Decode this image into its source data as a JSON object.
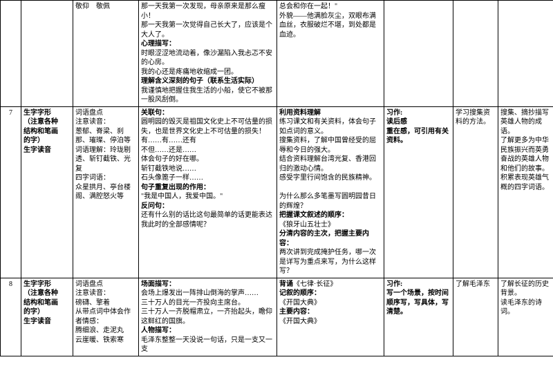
{
  "rows": [
    {
      "num": "",
      "a": "",
      "b": "敬仰　敬佩",
      "c": "那一天我第一次发现，母亲原来是那么瘦小！\n那一天我第一次觉得自己长大了，应该是个大人了。\n<b>心理描写：</b>\n时眼涩涩地流动着，像沙漏陷入我忐忑不安的心房。\n我的心还是疼痛地收缩成一团。\n<b>理解含义深刻的句子（联系生活实际）</b>\n我谨慎地把握住我生活的小船，使它不被那一股风刮倒。",
      "d": "总会和你在一起！\"\n外貌——他满脸灰尘，双眼布满血丝，衣服破烂不堪，到处都是血迹。",
      "e": "",
      "f": "",
      "g": ""
    },
    {
      "num": "7",
      "a": "<b>生字字形</b>\n<b>（注意各种</b>\n<b>结构和笔画</b>\n<b>的字）</b>\n<b>生字读音</b>",
      "b": "词语盘点\n注意读音：\n葱郁、脊梁、刹那、璀璨、停泊等\n词语理解：玲珑剔透、斩钉截铁、光复\n四字词语：\n众星拱月、亭台楼阁、满腔怒火等",
      "c": "<b>关联句：</b>\n圆明园的毁灭是祖国文化史上不可估量的损失，也是世界文化史上不可估量的损失！\n有……有……还有\n不但……还是……\n体会句子的好在哪。\n斩钉截铁地说……\n石头像篦子一样……\n<b>句子重复出现的作用：</b>\n\"我是中国人，我爱中国。\"\n<b>反问句：</b>\n还有什么别的话比这句最简单的话更能表达我此时的全部感情呢？",
      "d": "<b>利用资料理解</b>\n练习课文和有关资料，体会句子如点词的意义。\n搜集资料，了解中国曾经受的屈辱和今日的强大。\n结合资料理解台湾光复、香港回归的激动心情。\n感受字里行间饱含的民族精神。\n\n为什么那么多笔墨写圆明园昔日的辉煌？\n<b>把握课文叙述的顺序：</b>\n《狼牙山五壮士》\n<b>分清内容的主次，把握主要内容：</b>\n两次讲到完成掩护任务，哪一次是详写为重点来写，为什么这样写？",
      "e": "<b>习作:</b>\n<b>读后感</b>\n<b>重在感，可引用有关资料。</b>",
      "f": "学习搜集资料的方法。",
      "g": "搜集、摘抄描写英雄人物的成语。\n了解更多为中华民族振兴而英勇奋战的英雄人物和他们的故事。\n积累表现英雄气概的四字词语。"
    },
    {
      "num": "8",
      "a": "<b>生字字形</b>\n<b>（注意各种</b>\n<b>结构和笔画</b>\n<b>的字）</b>\n<b>生字读音</b>",
      "b": "词语盘点\n注意读音：\n磅礴、擎着\n从带点词中体会作者情感：\n腾细浪、走泥丸\n云崖暖、铁索寒",
      "c": "<b>场面描写：</b>\n会场上爆发出一阵排山倒海的掌声……\n三十万人的目光一齐投向主席台。\n三十万人一齐脱帽肃立，一齐抬起头，瞻仰这鲜红的国旗。\n<b>人物描写：</b>\n毛泽东整整一天没说一句话，只是一支又一支",
      "d": "<b>背诵</b>《七律·长征》\n<b>记叙的顺序：</b>\n《开国大典》\n<b>主要内容：</b>\n《开国大典》",
      "e": "<b>习作:</b>\n<b>写一个场景，按时间顺序写，写具体，写清楚。</b>",
      "f": "了解毛泽东",
      "g": "了解长征的历史背景。\n读毛泽东的诗词。"
    }
  ]
}
